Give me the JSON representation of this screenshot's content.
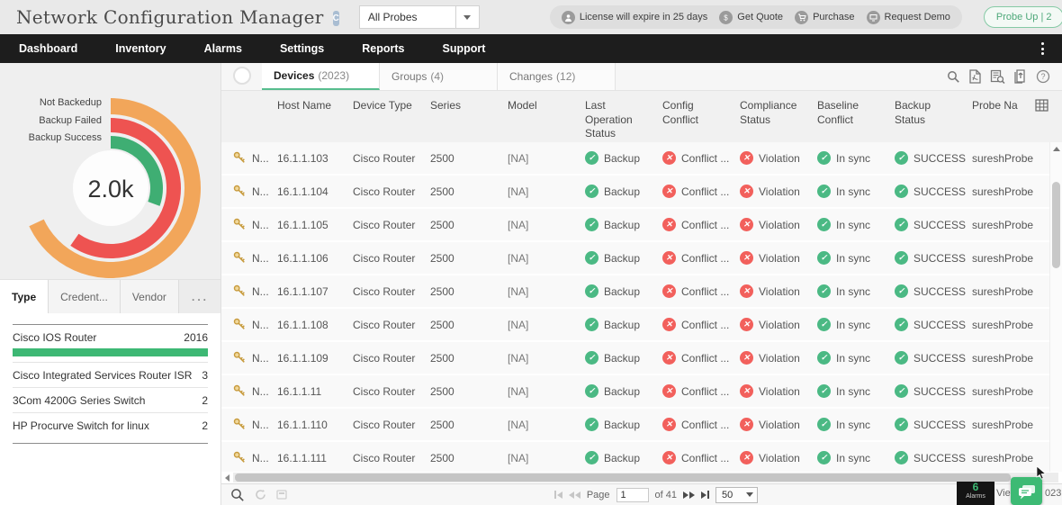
{
  "header": {
    "title": "Network Configuration Manager",
    "badge": "C",
    "probe_selector": {
      "value": "All Probes"
    },
    "license_bar": {
      "items": [
        {
          "icon": "license-user-icon",
          "label": "License will expire in 25 days"
        },
        {
          "icon": "get-quote-icon",
          "label": "Get Quote"
        },
        {
          "icon": "purchase-cart-icon",
          "label": "Purchase"
        },
        {
          "icon": "request-demo-icon",
          "label": "Request Demo"
        }
      ]
    },
    "probe_status": "Probe Up | 2"
  },
  "nav": {
    "items": [
      "Dashboard",
      "Inventory",
      "Alarms",
      "Settings",
      "Reports",
      "Support"
    ]
  },
  "sidebar": {
    "tabs": [
      {
        "label": "Type",
        "active": true
      },
      {
        "label": "Credent...",
        "active": false
      },
      {
        "label": "Vendor",
        "active": false
      },
      {
        "label": "...",
        "active": false,
        "overflow": true
      }
    ],
    "device_types": [
      {
        "label": "Cisco IOS Router",
        "count": "2016",
        "bar": true
      },
      {
        "label": "Cisco Integrated Services Router ISR",
        "count": "3"
      },
      {
        "label": "3Com 4200G Series Switch",
        "count": "2"
      },
      {
        "label": "HP Procurve Switch for linux",
        "count": "2"
      }
    ]
  },
  "chart_data": {
    "type": "radial-bar",
    "title": "",
    "center_label": "2.0k",
    "categories": [
      "Not Backedup",
      "Backup Failed",
      "Backup Success"
    ],
    "sweep_degrees": [
      245,
      215,
      110
    ],
    "colors": [
      "#F2A65A",
      "#EE5351",
      "#3FAE73"
    ],
    "legend_position": "left"
  },
  "content": {
    "tabs": [
      {
        "label": "Devices",
        "count": "(2023)",
        "active": true
      },
      {
        "label": "Groups",
        "count": "(4)",
        "active": false
      },
      {
        "label": "Changes",
        "count": "(12)",
        "active": false
      }
    ],
    "table": {
      "columns": [
        "Host Name",
        "Device Type",
        "Series",
        "Model",
        "Last Operation Status",
        "Config Conflict",
        "Compliance Status",
        "Baseline Conflict",
        "Backup Status",
        "Probe Na"
      ],
      "rows": [
        {
          "name": "N...",
          "host": "16.1.1.103",
          "device_type": "Cisco Router",
          "series": "2500",
          "model": "[NA]",
          "last_operation": {
            "state": "ok",
            "label": "Backup"
          },
          "config_conflict": {
            "state": "error",
            "label": "Conflict ..."
          },
          "compliance_status": {
            "state": "error",
            "label": "Violation"
          },
          "baseline_conflict": {
            "state": "ok",
            "label": "In sync"
          },
          "backup_status": {
            "state": "ok",
            "label": "SUCCESS"
          },
          "probe": "sureshProbe"
        },
        {
          "name": "N...",
          "host": "16.1.1.104",
          "device_type": "Cisco Router",
          "series": "2500",
          "model": "[NA]",
          "last_operation": {
            "state": "ok",
            "label": "Backup"
          },
          "config_conflict": {
            "state": "error",
            "label": "Conflict ..."
          },
          "compliance_status": {
            "state": "error",
            "label": "Violation"
          },
          "baseline_conflict": {
            "state": "ok",
            "label": "In sync"
          },
          "backup_status": {
            "state": "ok",
            "label": "SUCCESS"
          },
          "probe": "sureshProbe"
        },
        {
          "name": "N...",
          "host": "16.1.1.105",
          "device_type": "Cisco Router",
          "series": "2500",
          "model": "[NA]",
          "last_operation": {
            "state": "ok",
            "label": "Backup"
          },
          "config_conflict": {
            "state": "error",
            "label": "Conflict ..."
          },
          "compliance_status": {
            "state": "error",
            "label": "Violation"
          },
          "baseline_conflict": {
            "state": "ok",
            "label": "In sync"
          },
          "backup_status": {
            "state": "ok",
            "label": "SUCCESS"
          },
          "probe": "sureshProbe"
        },
        {
          "name": "N...",
          "host": "16.1.1.106",
          "device_type": "Cisco Router",
          "series": "2500",
          "model": "[NA]",
          "last_operation": {
            "state": "ok",
            "label": "Backup"
          },
          "config_conflict": {
            "state": "error",
            "label": "Conflict ..."
          },
          "compliance_status": {
            "state": "error",
            "label": "Violation"
          },
          "baseline_conflict": {
            "state": "ok",
            "label": "In sync"
          },
          "backup_status": {
            "state": "ok",
            "label": "SUCCESS"
          },
          "probe": "sureshProbe"
        },
        {
          "name": "N...",
          "host": "16.1.1.107",
          "device_type": "Cisco Router",
          "series": "2500",
          "model": "[NA]",
          "last_operation": {
            "state": "ok",
            "label": "Backup"
          },
          "config_conflict": {
            "state": "error",
            "label": "Conflict ..."
          },
          "compliance_status": {
            "state": "error",
            "label": "Violation"
          },
          "baseline_conflict": {
            "state": "ok",
            "label": "In sync"
          },
          "backup_status": {
            "state": "ok",
            "label": "SUCCESS"
          },
          "probe": "sureshProbe"
        },
        {
          "name": "N...",
          "host": "16.1.1.108",
          "device_type": "Cisco Router",
          "series": "2500",
          "model": "[NA]",
          "last_operation": {
            "state": "ok",
            "label": "Backup"
          },
          "config_conflict": {
            "state": "error",
            "label": "Conflict ..."
          },
          "compliance_status": {
            "state": "error",
            "label": "Violation"
          },
          "baseline_conflict": {
            "state": "ok",
            "label": "In sync"
          },
          "backup_status": {
            "state": "ok",
            "label": "SUCCESS"
          },
          "probe": "sureshProbe"
        },
        {
          "name": "N...",
          "host": "16.1.1.109",
          "device_type": "Cisco Router",
          "series": "2500",
          "model": "[NA]",
          "last_operation": {
            "state": "ok",
            "label": "Backup"
          },
          "config_conflict": {
            "state": "error",
            "label": "Conflict ..."
          },
          "compliance_status": {
            "state": "error",
            "label": "Violation"
          },
          "baseline_conflict": {
            "state": "ok",
            "label": "In sync"
          },
          "backup_status": {
            "state": "ok",
            "label": "SUCCESS"
          },
          "probe": "sureshProbe"
        },
        {
          "name": "N...",
          "host": "16.1.1.11",
          "device_type": "Cisco Router",
          "series": "2500",
          "model": "[NA]",
          "last_operation": {
            "state": "ok",
            "label": "Backup"
          },
          "config_conflict": {
            "state": "error",
            "label": "Conflict ..."
          },
          "compliance_status": {
            "state": "error",
            "label": "Violation"
          },
          "baseline_conflict": {
            "state": "ok",
            "label": "In sync"
          },
          "backup_status": {
            "state": "ok",
            "label": "SUCCESS"
          },
          "probe": "sureshProbe"
        },
        {
          "name": "N...",
          "host": "16.1.1.110",
          "device_type": "Cisco Router",
          "series": "2500",
          "model": "[NA]",
          "last_operation": {
            "state": "ok",
            "label": "Backup"
          },
          "config_conflict": {
            "state": "error",
            "label": "Conflict ..."
          },
          "compliance_status": {
            "state": "error",
            "label": "Violation"
          },
          "baseline_conflict": {
            "state": "ok",
            "label": "In sync"
          },
          "backup_status": {
            "state": "ok",
            "label": "SUCCESS"
          },
          "probe": "sureshProbe"
        },
        {
          "name": "N...",
          "host": "16.1.1.111",
          "device_type": "Cisco Router",
          "series": "2500",
          "model": "[NA]",
          "last_operation": {
            "state": "ok",
            "label": "Backup"
          },
          "config_conflict": {
            "state": "error",
            "label": "Conflict ..."
          },
          "compliance_status": {
            "state": "error",
            "label": "Violation"
          },
          "baseline_conflict": {
            "state": "ok",
            "label": "In sync"
          },
          "backup_status": {
            "state": "ok",
            "label": "SUCCESS"
          },
          "probe": "sureshProbe"
        }
      ]
    },
    "pagination": {
      "page_label": "Page",
      "page_value": "1",
      "total_label": "of 41",
      "page_size": "50"
    },
    "footer": {
      "alarms_count": "6",
      "alarms_label": "Alarms",
      "view_label": "View 1",
      "view_suffix": "023"
    }
  }
}
